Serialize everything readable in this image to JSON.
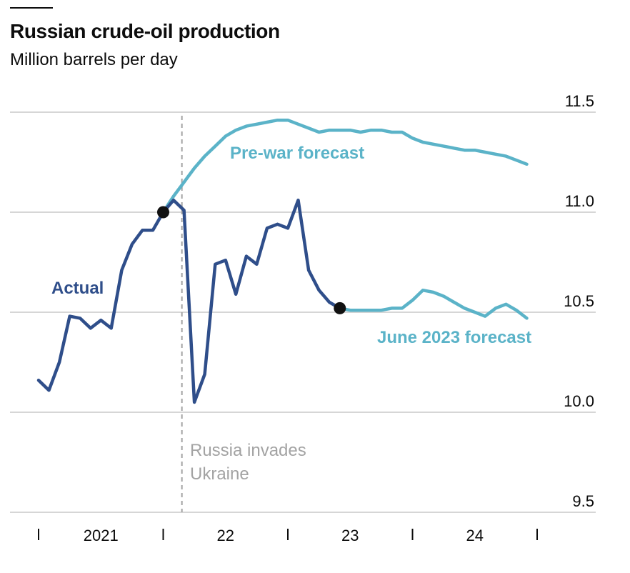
{
  "header": {
    "title": "Russian crude-oil production",
    "subtitle": "Million barrels per day"
  },
  "annotation": {
    "line1": "Russia invades",
    "line2": "Ukraine"
  },
  "colors": {
    "actual": "#2f4e8a",
    "forecast": "#5bb3c8",
    "grid": "#d6d6d6",
    "event": "#a3a3a3"
  },
  "chart_data": {
    "type": "line",
    "title": "Russian crude-oil production",
    "subtitle": "Million barrels per day",
    "ylim": [
      9.5,
      11.5
    ],
    "yticks": [
      9.5,
      10.0,
      10.5,
      11.0,
      11.5
    ],
    "ytick_labels": [
      "9.5",
      "10.0",
      "10.5",
      "11.0",
      "11.5"
    ],
    "y_axis_side": "right",
    "grid": "horizontal",
    "xlim": [
      2021.0,
      2025.0
    ],
    "xtick_marks": [
      2021.0,
      2022.0,
      2023.0,
      2024.0,
      2025.0
    ],
    "x_labels": [
      {
        "x": 2021.5,
        "text": "2021"
      },
      {
        "x": 2022.5,
        "text": "22"
      },
      {
        "x": 2023.5,
        "text": "23"
      },
      {
        "x": 2024.5,
        "text": "24"
      }
    ],
    "event_line": {
      "x": 2022.15,
      "label": "Russia invades Ukraine"
    },
    "series": [
      {
        "name": "Actual",
        "color": "#2f4e8a",
        "x": [
          2021.0,
          2021.083,
          2021.167,
          2021.25,
          2021.333,
          2021.417,
          2021.5,
          2021.583,
          2021.667,
          2021.75,
          2021.833,
          2021.917,
          2022.0,
          2022.083,
          2022.167,
          2022.25,
          2022.333,
          2022.417,
          2022.5,
          2022.583,
          2022.667,
          2022.75,
          2022.833,
          2022.917,
          2023.0,
          2023.083,
          2023.167,
          2023.25,
          2023.333,
          2023.417
        ],
        "y": [
          10.16,
          10.11,
          10.25,
          10.48,
          10.47,
          10.42,
          10.46,
          10.42,
          10.71,
          10.84,
          10.91,
          10.91,
          11.0,
          11.06,
          11.01,
          10.05,
          10.19,
          10.74,
          10.76,
          10.59,
          10.78,
          10.74,
          10.92,
          10.94,
          10.92,
          11.06,
          10.71,
          10.61,
          10.55,
          10.52
        ]
      },
      {
        "name": "Pre-war forecast",
        "color": "#5bb3c8",
        "x": [
          2022.0,
          2022.083,
          2022.167,
          2022.25,
          2022.333,
          2022.417,
          2022.5,
          2022.583,
          2022.667,
          2022.75,
          2022.833,
          2022.917,
          2023.0,
          2023.083,
          2023.167,
          2023.25,
          2023.333,
          2023.417,
          2023.5,
          2023.583,
          2023.667,
          2023.75,
          2023.833,
          2023.917,
          2024.0,
          2024.083,
          2024.167,
          2024.25,
          2024.333,
          2024.417,
          2024.5,
          2024.583,
          2024.667,
          2024.75,
          2024.833,
          2024.917
        ],
        "y": [
          11.0,
          11.08,
          11.15,
          11.22,
          11.28,
          11.33,
          11.38,
          11.41,
          11.43,
          11.44,
          11.45,
          11.46,
          11.46,
          11.44,
          11.42,
          11.4,
          11.41,
          11.41,
          11.41,
          11.4,
          11.41,
          11.41,
          11.4,
          11.4,
          11.37,
          11.35,
          11.34,
          11.33,
          11.32,
          11.31,
          11.31,
          11.3,
          11.29,
          11.28,
          11.26,
          11.24
        ]
      },
      {
        "name": "June 2023 forecast",
        "color": "#5bb3c8",
        "x": [
          2023.417,
          2023.5,
          2023.583,
          2023.667,
          2023.75,
          2023.833,
          2023.917,
          2024.0,
          2024.083,
          2024.167,
          2024.25,
          2024.333,
          2024.417,
          2024.5,
          2024.583,
          2024.667,
          2024.75,
          2024.833,
          2024.917
        ],
        "y": [
          10.52,
          10.51,
          10.51,
          10.51,
          10.51,
          10.52,
          10.52,
          10.56,
          10.61,
          10.6,
          10.58,
          10.55,
          10.52,
          10.5,
          10.48,
          10.52,
          10.54,
          10.51,
          10.47
        ]
      }
    ],
    "markers": [
      {
        "x": 2022.0,
        "y": 11.0
      },
      {
        "x": 2023.417,
        "y": 10.52
      }
    ]
  }
}
